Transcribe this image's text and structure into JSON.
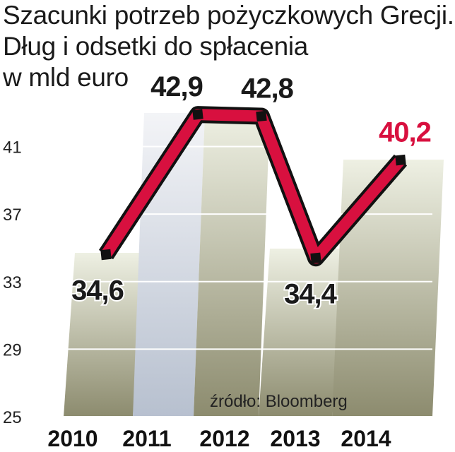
{
  "title_lines": [
    "Szacunki potrzeb pożyczkowych Grecji.",
    "Dług i odsetki do spłacenia",
    "w mld euro"
  ],
  "source": "źródło: Bloomberg",
  "colors": {
    "line": "#d8103f",
    "marker": "#111111",
    "highlight_label": "#d8103f",
    "label": "#1a1a1a",
    "column_dark_top": "#eef0e3",
    "column_dark_bottom": "#8c8b6e",
    "column_light_top": "#f3f4f7",
    "column_light_bottom": "#b7c0cf"
  },
  "chart_data": {
    "type": "line",
    "title": "Szacunki potrzeb pożyczkowych Grecji. Dług i odsetki do spłacenia w mld euro",
    "xlabel": "",
    "ylabel": "",
    "categories": [
      "2010",
      "2011",
      "2012",
      "2013",
      "2014"
    ],
    "series": [
      {
        "values": [
          34.6,
          42.9,
          42.8,
          34.4,
          40.2
        ]
      }
    ],
    "data_labels": [
      "34,6",
      "42,9",
      "42,8",
      "34,4",
      "40,2"
    ],
    "highlighted_index": 4,
    "y_ticks": [
      25,
      29,
      33,
      37,
      41
    ],
    "ylim": [
      25,
      44
    ],
    "grid": true,
    "source": "źródło: Bloomberg"
  }
}
